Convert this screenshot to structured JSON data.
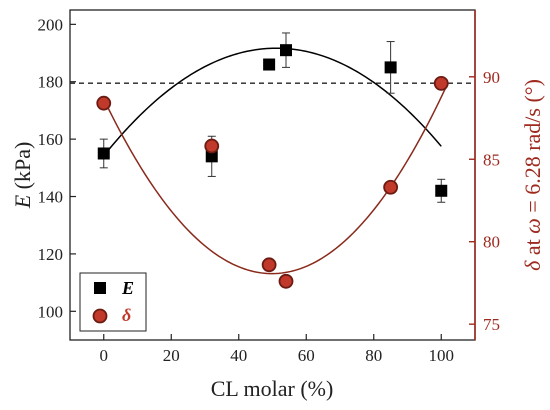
{
  "chart_data": {
    "type": "scatter",
    "title": "",
    "xlabel": "CL molar (%)",
    "ylabel_left": {
      "italic": "E",
      "rest": " (kPa)"
    },
    "ylabel_right": {
      "d": "δ",
      "t1": " at ",
      "w": "ω",
      "t2": " = 6.28 rad/s (°)"
    },
    "xlim": [
      -10,
      110
    ],
    "xticks": [
      0,
      20,
      40,
      60,
      80,
      100
    ],
    "ylim_left": [
      90,
      205
    ],
    "yticks_left": [
      100,
      120,
      140,
      160,
      180,
      200
    ],
    "ylim_right": [
      74.04,
      94.05
    ],
    "yticks_right": [
      75,
      80,
      85,
      90
    ],
    "reference_line": {
      "axis": "left",
      "value": 179.5,
      "style": "dashed"
    },
    "legend": {
      "placement": "bottom-left"
    },
    "colors": {
      "E": "#000000",
      "delta": "#c0392b",
      "delta_edge": "#6b1b12",
      "right_axis": "#9e2a1f",
      "fit_E": "#000000",
      "fit_delta": "#8a2a1c"
    },
    "series": [
      {
        "name": "E",
        "axis": "left",
        "marker": "square",
        "x": [
          0,
          32,
          49,
          54,
          85,
          100
        ],
        "y": [
          155,
          154,
          186,
          191,
          185,
          142
        ],
        "err": [
          5,
          7,
          0,
          6,
          9,
          4
        ]
      },
      {
        "name": "δ",
        "axis": "right",
        "marker": "circle",
        "x": [
          0,
          32,
          49,
          54,
          85,
          100
        ],
        "y": [
          88.4,
          85.8,
          78.6,
          77.6,
          83.3,
          89.6
        ],
        "err": [
          0,
          0,
          0,
          0,
          0,
          0
        ]
      }
    ],
    "fits": [
      {
        "series": "E",
        "axis": "left",
        "x_range": [
          0,
          100
        ],
        "coeffs": [
          154.2,
          1.4658,
          -0.014328
        ]
      },
      {
        "series": "δ",
        "axis": "right",
        "x_range": [
          0,
          102
        ],
        "coeffs": [
          88.65,
          -0.4246,
          0.004258
        ]
      }
    ]
  }
}
